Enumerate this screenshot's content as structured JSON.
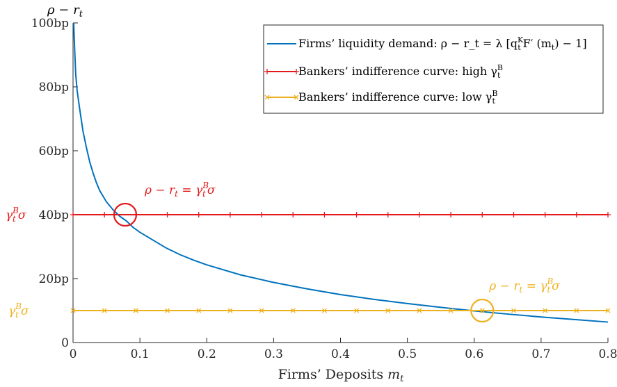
{
  "chart_data": {
    "type": "line",
    "title": "",
    "xlabel": "Firms’ Deposits m_t",
    "ylabel": "ρ − r_t",
    "xlim": [
      0,
      0.8
    ],
    "ylim": [
      0,
      100
    ],
    "grid": false,
    "legend_position": "top-right",
    "x_ticks": [
      0,
      0.1,
      0.2,
      0.3,
      0.4,
      0.5,
      0.6,
      0.7,
      0.8
    ],
    "x_tick_labels": [
      "0",
      "0.1",
      "0.2",
      "0.3",
      "0.4",
      "0.5",
      "0.6",
      "0.7",
      "0.8"
    ],
    "y_ticks": [
      0,
      20,
      40,
      60,
      80,
      100
    ],
    "y_tick_labels": [
      "0",
      "20bp",
      "40bp",
      "60bp",
      "80bp",
      "100bp"
    ],
    "series": [
      {
        "name": "Firms’ liquidity demand: ρ − r_t = λ[q_t^K F′(m_t) − 1]",
        "legend_label": "Firms’ liquidity demand: ρ − r_t = λ [q",
        "legend_super": "K",
        "legend_sub": "t",
        "legend_tail": "F′ (m",
        "legend_tail_sub": "t",
        "legend_end": ") − 1]",
        "color": "#0072BD",
        "marker": "none",
        "x": [
          0.001,
          0.002,
          0.004,
          0.006,
          0.008,
          0.01,
          0.015,
          0.02,
          0.025,
          0.03,
          0.035,
          0.04,
          0.05,
          0.06,
          0.07,
          0.08,
          0.09,
          0.1,
          0.12,
          0.14,
          0.16,
          0.18,
          0.2,
          0.25,
          0.3,
          0.35,
          0.4,
          0.45,
          0.5,
          0.55,
          0.6,
          0.65,
          0.7,
          0.75,
          0.8
        ],
        "y": [
          100,
          94,
          84,
          79,
          76,
          73,
          66,
          61,
          56.5,
          53,
          50,
          47.5,
          44,
          41.5,
          39.5,
          38,
          36,
          34.5,
          32,
          29.5,
          27.5,
          25.8,
          24.3,
          21.2,
          18.8,
          16.8,
          15,
          13.5,
          12.2,
          11,
          9.9,
          8.9,
          8,
          7.2,
          6.4
        ]
      },
      {
        "name": "Bankers’ indifference curve: high γ_t^B",
        "legend_label": "Bankers’ indifference curve: high γ",
        "legend_super": "B",
        "legend_sub": "t",
        "color": "#E31A1C",
        "marker": "plus",
        "x": [
          0,
          0.8
        ],
        "y": [
          40,
          40
        ]
      },
      {
        "name": "Bankers’ indifference curve: low γ_t^B",
        "legend_label": "Bankers’ indifference curve: low γ",
        "legend_super": "B",
        "legend_sub": "t",
        "color": "#EDB120",
        "marker": "x",
        "x": [
          0,
          0.8
        ],
        "y": [
          10,
          10
        ]
      }
    ],
    "marker_x": [
      0,
      0.047,
      0.094,
      0.141,
      0.188,
      0.235,
      0.282,
      0.329,
      0.376,
      0.424,
      0.471,
      0.518,
      0.565,
      0.612,
      0.659,
      0.706,
      0.753,
      0.8
    ],
    "annotations": [
      {
        "text": "ρ − r_t = γ_t^B σ",
        "main": "ρ − r",
        "sub1": "t",
        "mid": " = γ",
        "sup": "B",
        "sub2": "t",
        "end": "σ",
        "color": "#E31A1C",
        "x": 0.078,
        "y": 40,
        "circle": true
      },
      {
        "text": "ρ − r_t = γ_t^B σ",
        "main": "ρ − r",
        "sub1": "t",
        "mid": " = γ",
        "sup": "B",
        "sub2": "t",
        "end": "σ",
        "color": "#EDB120",
        "x": 0.612,
        "y": 10,
        "circle": true
      }
    ],
    "y_side_labels": [
      {
        "text": "γ_t^B σ",
        "main": "γ",
        "sup": "B",
        "sub": "t",
        "end": "σ",
        "color": "#E31A1C",
        "y": 40
      },
      {
        "text": "γ_t^B σ",
        "main": "γ",
        "sup": "B",
        "sub": "t",
        "end": "σ",
        "color": "#EDB120",
        "y": 10
      }
    ]
  }
}
